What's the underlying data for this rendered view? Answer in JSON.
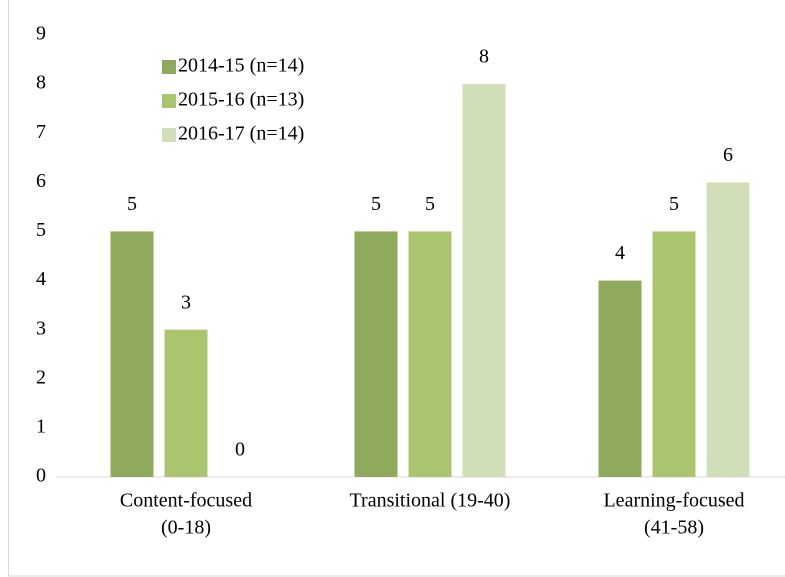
{
  "chart_data": {
    "type": "bar",
    "categories": [
      [
        "Content-focused",
        "(0-18)"
      ],
      [
        "Transitional (19-40)"
      ],
      [
        "Learning-focused",
        "(41-58)"
      ]
    ],
    "series": [
      {
        "name": "2014-15 (n=14)",
        "color": "#8faa5c",
        "values": [
          5,
          5,
          4
        ]
      },
      {
        "name": "2015-16 (n=13)",
        "color": "#aac56e",
        "values": [
          3,
          5,
          5
        ]
      },
      {
        "name": "2016-17 (n=14)",
        "color": "#d1dfb9",
        "values": [
          0,
          8,
          6
        ]
      }
    ],
    "ylim": [
      0,
      9
    ],
    "yticks": [
      0,
      1,
      2,
      3,
      4,
      5,
      6,
      7,
      8,
      9
    ],
    "grid": false,
    "legend": "top-left"
  }
}
